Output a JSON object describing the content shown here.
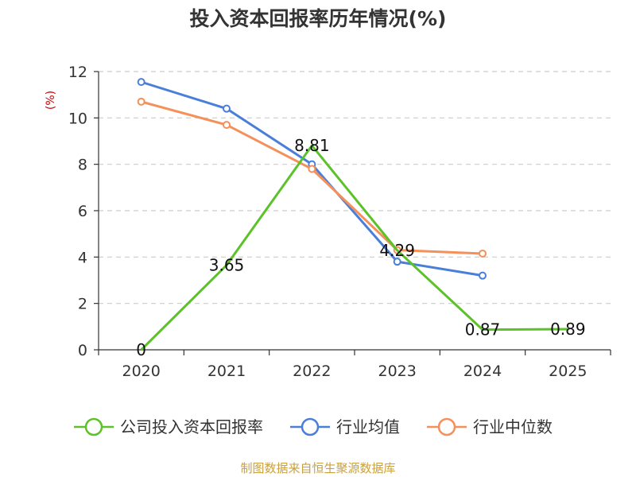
{
  "chart_data": {
    "type": "line",
    "title": "投入资本回报率历年情况(%)",
    "ylabel": "(%)",
    "xlabel": "",
    "categories": [
      "2020",
      "2021",
      "2022",
      "2023",
      "2024",
      "2025"
    ],
    "ylim": [
      0,
      12
    ],
    "yticks": [
      "0",
      "2",
      "4",
      "6",
      "8",
      "10",
      "12"
    ],
    "grid": true,
    "legend_position": "bottom",
    "series": [
      {
        "name": "公司投入资本回报率",
        "color": "#5cc22a",
        "values": [
          0,
          3.65,
          8.81,
          4.29,
          0.87,
          0.89
        ],
        "labels": [
          "0",
          "3.65",
          "8.81",
          "4.29",
          "0.87",
          "0.89"
        ],
        "show_markers": false
      },
      {
        "name": "行业均值",
        "color": "#4a7fd9",
        "values": [
          11.55,
          10.4,
          8.0,
          3.8,
          3.2,
          null
        ],
        "show_markers": true
      },
      {
        "name": "行业中位数",
        "color": "#f5905a",
        "values": [
          10.7,
          9.7,
          7.8,
          4.3,
          4.15,
          null
        ],
        "show_markers": true
      }
    ],
    "source": "制图数据来自恒生聚源数据库"
  }
}
